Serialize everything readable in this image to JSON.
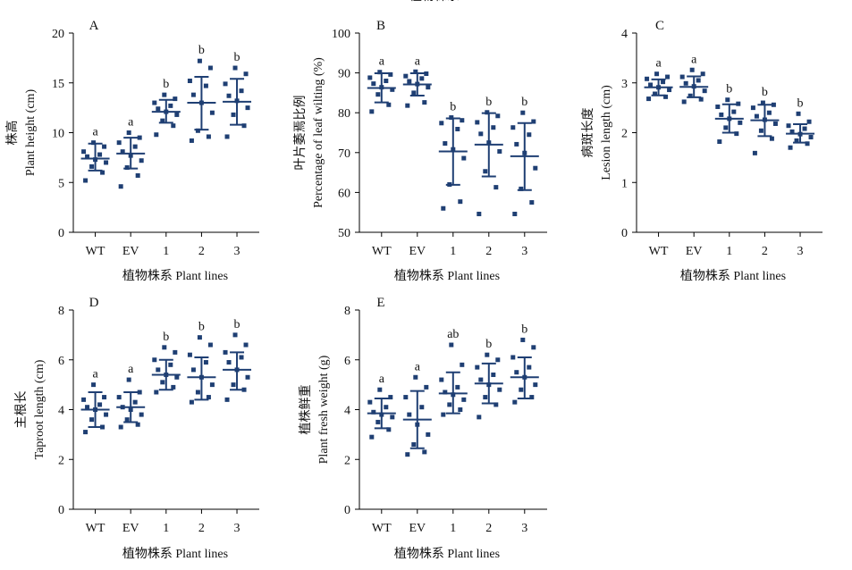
{
  "figure": {
    "colors": {
      "points": "#1f3f73",
      "error_bars": "#1f3f73",
      "axes": "#000000",
      "text": "#111111"
    }
  },
  "chart_data": [
    {
      "type": "scatter",
      "panel": "A",
      "categories": [
        "WT",
        "EV",
        "1",
        "2",
        "3"
      ],
      "xlabel": "植物株系 Plant lines",
      "ylabel_zh": "株高",
      "ylabel_en": "Plant height (cm)",
      "ylim": [
        0,
        20
      ],
      "yticks": [
        0,
        5,
        10,
        15,
        20
      ],
      "series": [
        {
          "category": "WT",
          "mean": 7.4,
          "sd_low": 6.2,
          "sd_high": 8.9,
          "letter": "a",
          "points": [
            5.2,
            6.0,
            6.6,
            7.0,
            7.3,
            7.6,
            7.8,
            8.1,
            8.6,
            9.0
          ]
        },
        {
          "category": "EV",
          "mean": 7.9,
          "sd_low": 6.4,
          "sd_high": 9.5,
          "letter": "a",
          "points": [
            4.6,
            5.7,
            6.5,
            7.2,
            7.7,
            8.1,
            8.6,
            9.0,
            9.5,
            10.0
          ]
        },
        {
          "category": "1",
          "mean": 12.1,
          "sd_low": 11.0,
          "sd_high": 13.3,
          "letter": "b",
          "points": [
            9.8,
            10.7,
            11.2,
            11.8,
            12.1,
            12.4,
            12.7,
            13.0,
            13.4,
            13.8
          ]
        },
        {
          "category": "2",
          "mean": 13.0,
          "sd_low": 10.3,
          "sd_high": 15.6,
          "letter": "b",
          "points": [
            9.2,
            9.6,
            10.2,
            12.0,
            13.0,
            13.8,
            14.7,
            15.2,
            16.5,
            17.2
          ]
        },
        {
          "category": "3",
          "mean": 13.1,
          "sd_low": 10.8,
          "sd_high": 15.4,
          "letter": "b",
          "points": [
            9.6,
            10.7,
            11.8,
            12.5,
            13.2,
            13.7,
            14.2,
            14.9,
            15.9,
            16.5
          ]
        }
      ]
    },
    {
      "type": "scatter",
      "panel": "B",
      "categories": [
        "WT",
        "EV",
        "1",
        "2",
        "3"
      ],
      "xlabel": "",
      "ylabel_zh": "叶片萎焉比例",
      "ylabel_en": "Percentage of leaf wilting (%)",
      "ylim": [
        50,
        100
      ],
      "yticks": [
        50,
        60,
        70,
        80,
        90,
        100
      ],
      "series": [
        {
          "category": "WT",
          "mean": 86.2,
          "sd_low": 82.6,
          "sd_high": 89.9,
          "letter": "a",
          "points": [
            80.3,
            82.0,
            84.6,
            85.8,
            86.4,
            87.3,
            88.0,
            88.8,
            89.6,
            90.2
          ]
        },
        {
          "category": "EV",
          "mean": 87.1,
          "sd_low": 84.3,
          "sd_high": 89.9,
          "letter": "a",
          "points": [
            81.8,
            82.6,
            85.0,
            86.4,
            87.2,
            87.9,
            88.6,
            89.2,
            89.8,
            90.3
          ]
        },
        {
          "category": "1",
          "mean": 70.3,
          "sd_low": 61.9,
          "sd_high": 78.6,
          "letter": "b",
          "points": [
            56.0,
            57.7,
            62.0,
            68.6,
            70.8,
            72.3,
            75.9,
            77.4,
            78.1,
            78.8
          ]
        },
        {
          "category": "2",
          "mean": 72.0,
          "sd_low": 64.0,
          "sd_high": 79.9,
          "letter": "b",
          "points": [
            54.6,
            61.3,
            65.3,
            70.3,
            72.5,
            74.7,
            76.3,
            77.6,
            79.2,
            80.1
          ]
        },
        {
          "category": "3",
          "mean": 69.1,
          "sd_low": 60.6,
          "sd_high": 77.4,
          "letter": "b",
          "points": [
            54.6,
            57.5,
            60.9,
            66.1,
            69.9,
            72.1,
            74.5,
            76.3,
            77.8,
            80.0
          ]
        }
      ]
    },
    {
      "type": "scatter",
      "panel": "C",
      "categories": [
        "WT",
        "EV",
        "1",
        "2",
        "3"
      ],
      "xlabel": "",
      "ylabel_zh": "病斑长度",
      "ylabel_en": "Lesion length (cm)",
      "ylim": [
        0,
        4
      ],
      "yticks": [
        0,
        1,
        2,
        3,
        4
      ],
      "series": [
        {
          "category": "WT",
          "mean": 2.91,
          "sd_low": 2.75,
          "sd_high": 3.07,
          "letter": "a",
          "points": [
            2.68,
            2.72,
            2.78,
            2.86,
            2.91,
            2.96,
            3.02,
            3.08,
            3.12,
            3.18
          ]
        },
        {
          "category": "EV",
          "mean": 2.92,
          "sd_low": 2.71,
          "sd_high": 3.13,
          "letter": "a",
          "points": [
            2.62,
            2.67,
            2.74,
            2.84,
            2.93,
            2.99,
            3.05,
            3.12,
            3.18,
            3.26
          ]
        },
        {
          "category": "1",
          "mean": 2.28,
          "sd_low": 2.0,
          "sd_high": 2.57,
          "letter": "b",
          "points": [
            1.82,
            1.98,
            2.1,
            2.2,
            2.28,
            2.36,
            2.42,
            2.52,
            2.58,
            2.66
          ]
        },
        {
          "category": "2",
          "mean": 2.25,
          "sd_low": 1.93,
          "sd_high": 2.56,
          "letter": "b",
          "points": [
            1.59,
            1.88,
            2.04,
            2.18,
            2.26,
            2.33,
            2.4,
            2.5,
            2.56,
            2.6
          ]
        },
        {
          "category": "3",
          "mean": 1.98,
          "sd_low": 1.8,
          "sd_high": 2.17,
          "letter": "b",
          "points": [
            1.7,
            1.78,
            1.84,
            1.91,
            1.97,
            2.02,
            2.08,
            2.14,
            2.22,
            2.38
          ]
        }
      ]
    },
    {
      "type": "scatter",
      "panel": "D",
      "categories": [
        "WT",
        "EV",
        "1",
        "2",
        "3"
      ],
      "xlabel": "植物株系 Plant lines",
      "ylabel_zh": "主根长",
      "ylabel_en": "Taproot length (cm)",
      "ylim": [
        0,
        8
      ],
      "yticks": [
        0,
        2,
        4,
        6,
        8
      ],
      "series": [
        {
          "category": "WT",
          "mean": 4.0,
          "sd_low": 3.3,
          "sd_high": 4.7,
          "letter": "a",
          "points": [
            3.1,
            3.3,
            3.6,
            3.8,
            4.0,
            4.1,
            4.2,
            4.4,
            4.5,
            5.0
          ]
        },
        {
          "category": "EV",
          "mean": 4.1,
          "sd_low": 3.5,
          "sd_high": 4.7,
          "letter": "a",
          "points": [
            3.3,
            3.4,
            3.6,
            3.8,
            4.0,
            4.1,
            4.3,
            4.5,
            4.7,
            5.2
          ]
        },
        {
          "category": "1",
          "mean": 5.4,
          "sd_low": 4.8,
          "sd_high": 6.0,
          "letter": "b",
          "points": [
            4.7,
            4.9,
            5.1,
            5.3,
            5.4,
            5.6,
            5.8,
            6.0,
            6.3,
            6.5
          ]
        },
        {
          "category": "2",
          "mean": 5.3,
          "sd_low": 4.4,
          "sd_high": 6.1,
          "letter": "b",
          "points": [
            4.3,
            4.5,
            4.7,
            5.0,
            5.3,
            5.6,
            5.9,
            6.2,
            6.6,
            6.9
          ]
        },
        {
          "category": "3",
          "mean": 5.6,
          "sd_low": 4.8,
          "sd_high": 6.3,
          "letter": "b",
          "points": [
            4.4,
            4.8,
            5.0,
            5.3,
            5.6,
            5.9,
            6.1,
            6.3,
            6.6,
            7.0
          ]
        }
      ]
    },
    {
      "type": "scatter",
      "panel": "E",
      "categories": [
        "WT",
        "EV",
        "1",
        "2",
        "3"
      ],
      "xlabel": "植物株系 Plant lines",
      "ylabel_zh": "植株鲜重",
      "ylabel_en": "Plant fresh weight (g)",
      "ylim": [
        0,
        8
      ],
      "yticks": [
        0,
        2,
        4,
        6,
        8
      ],
      "series": [
        {
          "category": "WT",
          "mean": 3.85,
          "sd_low": 3.25,
          "sd_high": 4.45,
          "letter": "a",
          "points": [
            2.9,
            3.2,
            3.5,
            3.7,
            3.8,
            3.9,
            4.1,
            4.3,
            4.5,
            4.8
          ]
        },
        {
          "category": "EV",
          "mean": 3.6,
          "sd_low": 2.45,
          "sd_high": 4.75,
          "letter": "a",
          "points": [
            2.2,
            2.3,
            2.6,
            3.0,
            3.4,
            3.8,
            4.1,
            4.5,
            4.9,
            5.3
          ]
        },
        {
          "category": "1",
          "mean": 4.65,
          "sd_low": 3.85,
          "sd_high": 5.5,
          "letter": "ab",
          "points": [
            3.8,
            4.0,
            4.2,
            4.4,
            4.6,
            4.7,
            4.9,
            5.2,
            5.8,
            6.6
          ]
        },
        {
          "category": "2",
          "mean": 5.05,
          "sd_low": 4.25,
          "sd_high": 5.85,
          "letter": "b",
          "points": [
            3.7,
            4.2,
            4.5,
            4.8,
            5.0,
            5.2,
            5.4,
            5.7,
            6.0,
            6.2
          ]
        },
        {
          "category": "3",
          "mean": 5.3,
          "sd_low": 4.45,
          "sd_high": 6.1,
          "letter": "b",
          "points": [
            4.3,
            4.5,
            4.8,
            5.0,
            5.3,
            5.5,
            5.7,
            6.1,
            6.5,
            6.8
          ]
        }
      ]
    }
  ]
}
